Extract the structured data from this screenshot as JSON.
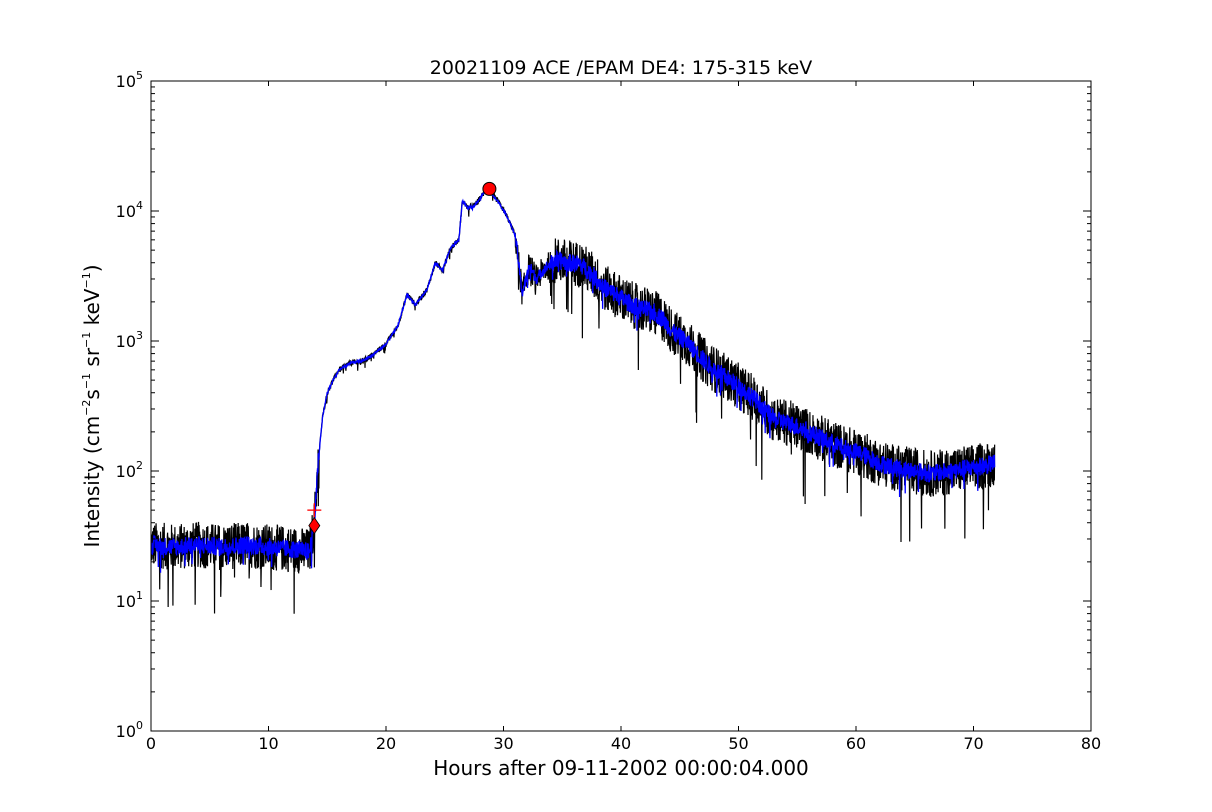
{
  "chart_data": {
    "type": "line",
    "title": "20021109 ACE /EPAM DE4: 175-315 keV",
    "xlabel": "Hours after 09-11-2002 00:00:04.000",
    "ylabel": {
      "prefix": "Intensity (cm",
      "sup1": "−2",
      "mid1": "s",
      "sup2": "−1",
      "mid2": " sr",
      "sup3": "−1",
      "mid3": " keV",
      "sup4": "−1",
      "suffix": ")"
    },
    "xlim": [
      0,
      80
    ],
    "ylim": [
      1,
      100000
    ],
    "yscale": "log",
    "x_ticks": [
      0,
      10,
      20,
      30,
      40,
      50,
      60,
      70,
      80
    ],
    "x_tick_labels": [
      "0",
      "10",
      "20",
      "30",
      "40",
      "50",
      "60",
      "70",
      "80"
    ],
    "y_ticks": [
      1,
      10,
      100,
      1000,
      10000,
      100000
    ],
    "y_tick_labels": [
      {
        "base": "10",
        "exp": "0"
      },
      {
        "base": "10",
        "exp": "1"
      },
      {
        "base": "10",
        "exp": "2"
      },
      {
        "base": "10",
        "exp": "3"
      },
      {
        "base": "10",
        "exp": "4"
      },
      {
        "base": "10",
        "exp": "5"
      }
    ],
    "grid": false,
    "series": [
      {
        "role": "raw",
        "color": "#000000",
        "noise_amplitude_decades": 0.18,
        "x": [
          0,
          2,
          4,
          6,
          8,
          10,
          12,
          13.5,
          13.9,
          14.2,
          14.6,
          15.0,
          15.5,
          16,
          17,
          18,
          19,
          20,
          21,
          21.8,
          22.5,
          23.5,
          24.2,
          24.8,
          25.5,
          26.2,
          26.5,
          27.0,
          27.5,
          28.0,
          28.5,
          28.9,
          29.5,
          30.2,
          31.0,
          31.6,
          32.2,
          32.8,
          33.5,
          34.5,
          35.5,
          36.5,
          37.5,
          38.5,
          39.5,
          40.5,
          41.5,
          42.5,
          43.5,
          44.5,
          45.5,
          46.5,
          47.5,
          48.5,
          50,
          51.5,
          53,
          54.5,
          56,
          57.5,
          59,
          60.5,
          62,
          63.5,
          65,
          66.5,
          68,
          69.5,
          71,
          71.8
        ],
        "y": [
          27,
          26,
          27,
          26,
          27,
          26,
          25,
          24,
          40,
          110,
          260,
          400,
          500,
          600,
          680,
          700,
          800,
          950,
          1300,
          2300,
          1900,
          2500,
          4000,
          3500,
          5200,
          6000,
          12000,
          10500,
          11000,
          12500,
          14500,
          13800,
          12000,
          9500,
          6500,
          2300,
          3800,
          3000,
          3600,
          4200,
          4000,
          3900,
          3300,
          2600,
          2300,
          2000,
          1800,
          1700,
          1500,
          1150,
          1000,
          800,
          650,
          560,
          450,
          350,
          250,
          230,
          200,
          170,
          150,
          135,
          115,
          105,
          100,
          95,
          100,
          105,
          110,
          115
        ]
      },
      {
        "role": "smoothed",
        "color": "#0000ff",
        "noise_amplitude_decades": 0.07,
        "x": [
          0,
          2,
          4,
          6,
          8,
          10,
          12,
          13.5,
          13.9,
          14.2,
          14.6,
          15.0,
          15.5,
          16,
          17,
          18,
          19,
          20,
          21,
          21.8,
          22.5,
          23.5,
          24.2,
          24.8,
          25.5,
          26.2,
          26.5,
          27.0,
          27.5,
          28.0,
          28.5,
          28.9,
          29.5,
          30.2,
          31.0,
          31.6,
          32.2,
          32.8,
          33.5,
          34.5,
          35.5,
          36.5,
          37.5,
          38.5,
          39.5,
          40.5,
          41.5,
          42.5,
          43.5,
          44.5,
          45.5,
          46.5,
          47.5,
          48.5,
          50,
          51.5,
          53,
          54.5,
          56,
          57.5,
          59,
          60.5,
          62,
          63.5,
          65,
          66.5,
          68,
          69.5,
          71,
          71.8
        ],
        "y": [
          27,
          26,
          27,
          26,
          27,
          26,
          25,
          24,
          40,
          110,
          260,
          400,
          500,
          600,
          680,
          700,
          800,
          950,
          1300,
          2300,
          1900,
          2500,
          4000,
          3500,
          5200,
          6000,
          12000,
          10500,
          11000,
          12500,
          14500,
          13800,
          12000,
          9500,
          6500,
          2300,
          3800,
          3000,
          3600,
          4200,
          4000,
          3900,
          3300,
          2600,
          2300,
          2000,
          1800,
          1700,
          1500,
          1150,
          1000,
          800,
          650,
          560,
          450,
          350,
          250,
          230,
          200,
          170,
          150,
          135,
          115,
          105,
          100,
          95,
          100,
          105,
          110,
          115
        ]
      }
    ],
    "markers": [
      {
        "name": "onset",
        "shape": "diamond",
        "x": 13.9,
        "y": 38,
        "color": "#ff0000"
      },
      {
        "name": "onset-cross-upper",
        "shape": "plus",
        "x": 13.9,
        "y": 50,
        "color": "#ff0000"
      },
      {
        "name": "peak",
        "shape": "circle",
        "x": 28.8,
        "y": 14800,
        "color": "#ff0000"
      }
    ]
  }
}
